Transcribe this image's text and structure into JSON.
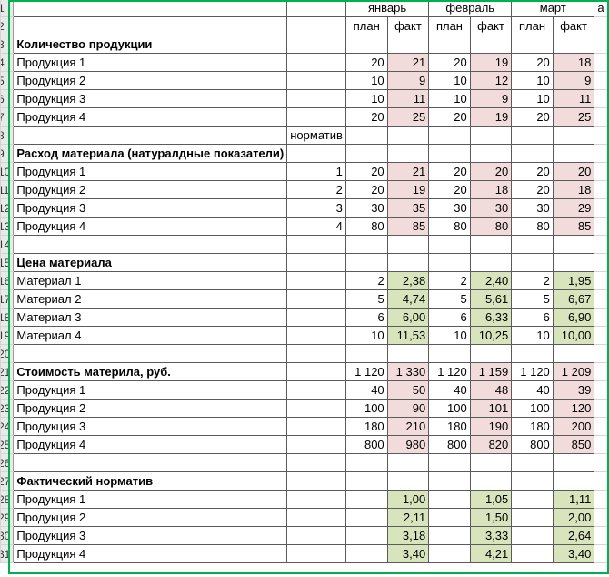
{
  "colors": {
    "border_selection": "#00b050",
    "fact_fill": "#f2dcdb",
    "norm_fill": "#d8e4bc"
  },
  "header": {
    "months": [
      "январь",
      "февраль",
      "март"
    ],
    "next_col_fragment": "а",
    "sub": [
      "план",
      "факт",
      "план",
      "факт",
      "план",
      "факт"
    ]
  },
  "rows": [
    {
      "rn": "1",
      "type": "months"
    },
    {
      "rn": "2",
      "type": "sub"
    },
    {
      "rn": "3",
      "type": "section",
      "label": "Количество продукции"
    },
    {
      "rn": "4",
      "type": "data",
      "label": "Продукция 1",
      "norm": "",
      "vals": [
        "20",
        "21",
        "20",
        "19",
        "20",
        "18"
      ],
      "fill": "pink"
    },
    {
      "rn": "5",
      "type": "data",
      "label": "Продукция 2",
      "norm": "",
      "vals": [
        "10",
        "9",
        "10",
        "12",
        "10",
        "9"
      ],
      "fill": "pink"
    },
    {
      "rn": "6",
      "type": "data",
      "label": "Продукция 3",
      "norm": "",
      "vals": [
        "10",
        "11",
        "10",
        "9",
        "10",
        "11"
      ],
      "fill": "pink"
    },
    {
      "rn": "7",
      "type": "data",
      "label": "Продукция 4",
      "norm": "",
      "vals": [
        "20",
        "25",
        "20",
        "19",
        "20",
        "25"
      ],
      "fill": "pink"
    },
    {
      "rn": "8",
      "type": "norm-header",
      "label": "норматив"
    },
    {
      "rn": "9",
      "type": "section",
      "label": "Расход материала (натуралдные показатели)"
    },
    {
      "rn": "10",
      "type": "data",
      "label": "Продукция 1",
      "norm": "1",
      "vals": [
        "20",
        "21",
        "20",
        "20",
        "20",
        "20"
      ],
      "fill": "pink"
    },
    {
      "rn": "11",
      "type": "data",
      "label": "Продукция 2",
      "norm": "2",
      "vals": [
        "20",
        "19",
        "20",
        "18",
        "20",
        "18"
      ],
      "fill": "pink"
    },
    {
      "rn": "12",
      "type": "data",
      "label": "Продукция 3",
      "norm": "3",
      "vals": [
        "30",
        "35",
        "30",
        "30",
        "30",
        "29"
      ],
      "fill": "pink"
    },
    {
      "rn": "13",
      "type": "data",
      "label": "Продукция 4",
      "norm": "4",
      "vals": [
        "80",
        "85",
        "80",
        "80",
        "80",
        "85"
      ],
      "fill": "pink"
    },
    {
      "rn": "14",
      "type": "empty"
    },
    {
      "rn": "15",
      "type": "section",
      "label": "Цена материала"
    },
    {
      "rn": "16",
      "type": "data",
      "label": "Материал 1",
      "norm": "",
      "vals": [
        "2",
        "2,38",
        "2",
        "2,40",
        "2",
        "1,95"
      ],
      "fill": "green"
    },
    {
      "rn": "17",
      "type": "data",
      "label": "Материал 2",
      "norm": "",
      "vals": [
        "5",
        "4,74",
        "5",
        "5,61",
        "5",
        "6,67"
      ],
      "fill": "green"
    },
    {
      "rn": "18",
      "type": "data",
      "label": "Материал 3",
      "norm": "",
      "vals": [
        "6",
        "6,00",
        "6",
        "6,33",
        "6",
        "6,90"
      ],
      "fill": "green"
    },
    {
      "rn": "19",
      "type": "data",
      "label": "Материал 4",
      "norm": "",
      "vals": [
        "10",
        "11,53",
        "10",
        "10,25",
        "10",
        "10,00"
      ],
      "fill": "green"
    },
    {
      "rn": "20",
      "type": "empty"
    },
    {
      "rn": "21",
      "type": "data",
      "bold": true,
      "label": "Стоимость материла, руб.",
      "norm": "",
      "vals": [
        "1 120",
        "1 330",
        "1 120",
        "1 159",
        "1 120",
        "1 209"
      ],
      "fill": "pink"
    },
    {
      "rn": "22",
      "type": "data",
      "label": "Продукция 1",
      "norm": "",
      "vals": [
        "40",
        "50",
        "40",
        "48",
        "40",
        "39"
      ],
      "fill": "pink"
    },
    {
      "rn": "23",
      "type": "data",
      "label": "Продукция 2",
      "norm": "",
      "vals": [
        "100",
        "90",
        "100",
        "101",
        "100",
        "120"
      ],
      "fill": "pink"
    },
    {
      "rn": "24",
      "type": "data",
      "label": "Продукция 3",
      "norm": "",
      "vals": [
        "180",
        "210",
        "180",
        "190",
        "180",
        "200"
      ],
      "fill": "pink"
    },
    {
      "rn": "25",
      "type": "data",
      "label": "Продукция 4",
      "norm": "",
      "vals": [
        "800",
        "980",
        "800",
        "820",
        "800",
        "850"
      ],
      "fill": "pink"
    },
    {
      "rn": "26",
      "type": "empty"
    },
    {
      "rn": "27",
      "type": "section",
      "label": "Фактический норматив"
    },
    {
      "rn": "28",
      "type": "data",
      "label": "Продукция 1",
      "norm": "",
      "vals": [
        "",
        "1,00",
        "",
        "1,05",
        "",
        "1,11"
      ],
      "fill": "green"
    },
    {
      "rn": "29",
      "type": "data",
      "label": "Продукция 2",
      "norm": "",
      "vals": [
        "",
        "2,11",
        "",
        "1,50",
        "",
        "2,00"
      ],
      "fill": "green"
    },
    {
      "rn": "30",
      "type": "data",
      "label": "Продукция 3",
      "norm": "",
      "vals": [
        "",
        "3,18",
        "",
        "3,33",
        "",
        "2,64"
      ],
      "fill": "green"
    },
    {
      "rn": "31",
      "type": "data",
      "label": "Продукция 4",
      "norm": "",
      "vals": [
        "",
        "3,40",
        "",
        "4,21",
        "",
        "3,40"
      ],
      "fill": "green"
    }
  ]
}
